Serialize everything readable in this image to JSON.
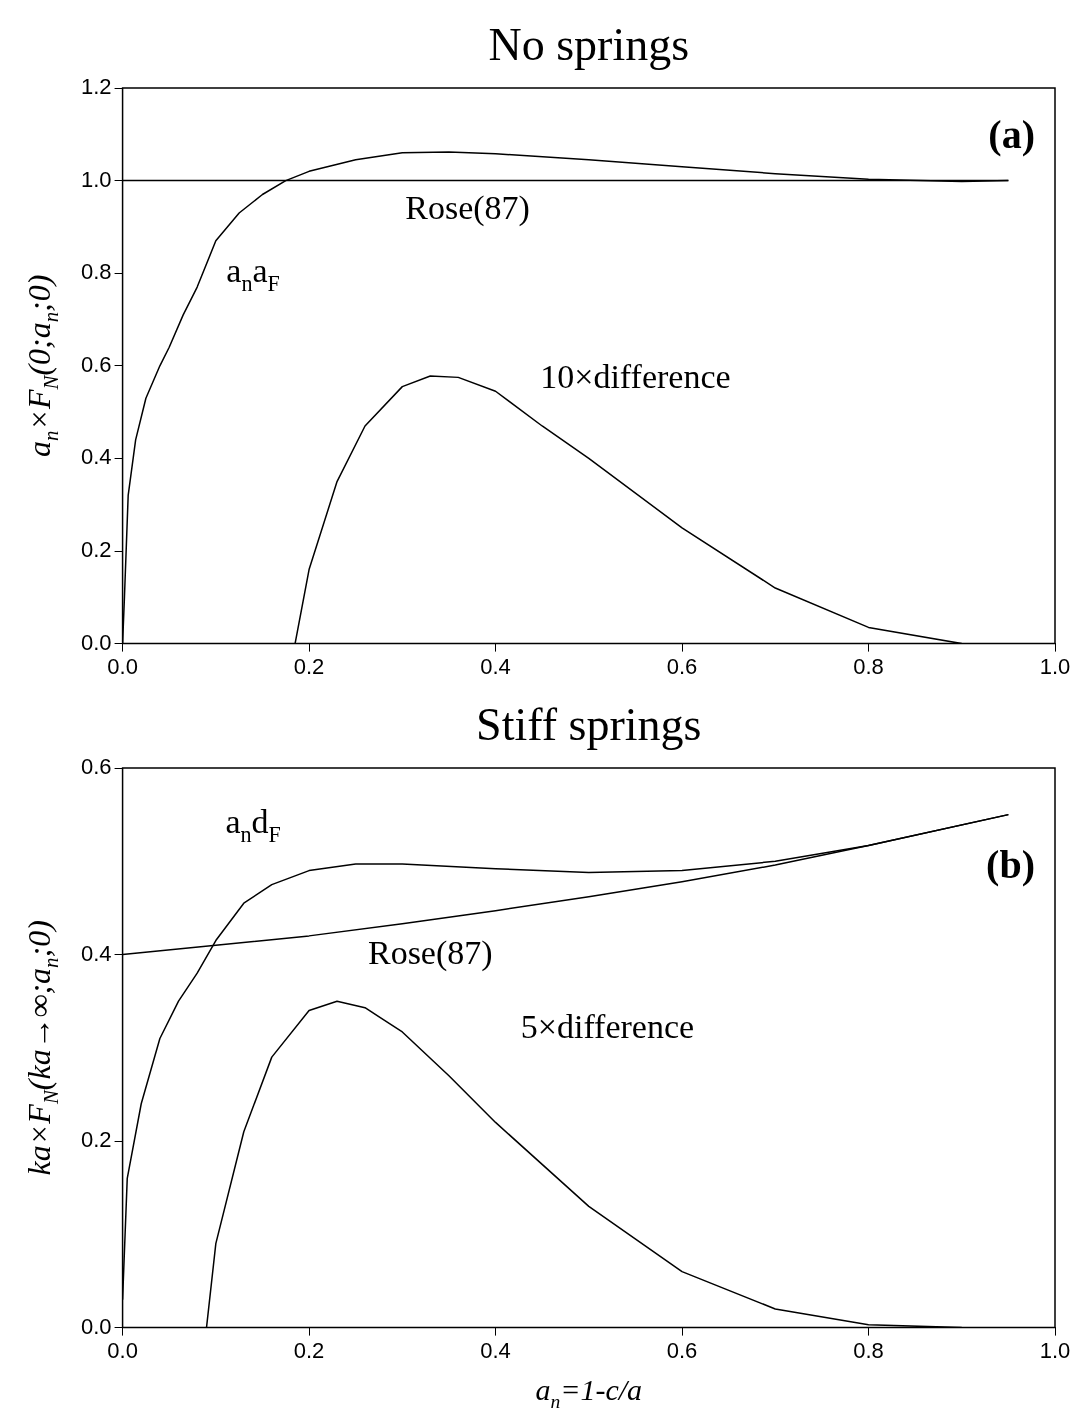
{
  "chart_data": [
    {
      "type": "line",
      "title": "No springs",
      "ylabel": "a$_{n}$×F$_{N}$(0;a$_{n}$;0)",
      "xlim": [
        0,
        1
      ],
      "ylim": [
        0,
        1.2
      ],
      "xticks": [
        {
          "value": 0,
          "label": "0.0"
        },
        {
          "value": 0.2,
          "label": "0.2"
        },
        {
          "value": 0.4,
          "label": "0.4"
        },
        {
          "value": 0.6,
          "label": "0.6"
        },
        {
          "value": 0.8,
          "label": "0.8"
        },
        {
          "value": 1,
          "label": "1.0"
        }
      ],
      "yticks": [
        {
          "value": 0,
          "label": "0.0"
        },
        {
          "value": 0.2,
          "label": "0.2"
        },
        {
          "value": 0.4,
          "label": "0.4"
        },
        {
          "value": 0.6,
          "label": "0.6"
        },
        {
          "value": 0.8,
          "label": "0.8"
        },
        {
          "value": 1,
          "label": "1.0"
        },
        {
          "value": 1.2,
          "label": "1.2"
        }
      ],
      "grid": false,
      "legend": false,
      "marker": "none",
      "line_style": "solid",
      "series": [
        {
          "name": "Rose(87)",
          "color": "#000000",
          "x": [
            0,
            0.95
          ],
          "values": [
            1,
            1
          ]
        },
        {
          "name": "a$_{n}$a$_{F}$",
          "color": "#000000",
          "x": [
            0,
            0.002,
            0.006,
            0.014,
            0.025,
            0.04,
            0.05,
            0.065,
            0.08,
            0.1,
            0.125,
            0.15,
            0.175,
            0.2,
            0.25,
            0.3,
            0.35,
            0.4,
            0.5,
            0.6,
            0.7,
            0.8,
            0.9,
            0.95
          ],
          "values": [
            0,
            0.1,
            0.32,
            0.44,
            0.53,
            0.6,
            0.64,
            0.71,
            0.77,
            0.87,
            0.93,
            0.97,
            1,
            1.02,
            1.045,
            1.06,
            1.062,
            1.058,
            1.045,
            1.03,
            1.015,
            1.003,
            0.998,
            1
          ]
        },
        {
          "name": "10×difference",
          "color": "#000000",
          "x": [
            0.185,
            0.2,
            0.23,
            0.26,
            0.3,
            0.33,
            0.36,
            0.4,
            0.45,
            0.5,
            0.6,
            0.7,
            0.8,
            0.9
          ],
          "values": [
            0,
            0.16,
            0.35,
            0.47,
            0.555,
            0.578,
            0.575,
            0.545,
            0.47,
            0.4,
            0.25,
            0.12,
            0.035,
            0
          ]
        }
      ],
      "annotations": [
        "(a)"
      ]
    },
    {
      "type": "line",
      "title": "Stiff springs",
      "xlabel": "a$_{n}$=1-c/a",
      "ylabel": "ka×F$_{N}$(ka→∞;a$_{n}$;0)",
      "xlim": [
        0,
        1
      ],
      "ylim": [
        0,
        0.6
      ],
      "xticks": [
        {
          "value": 0,
          "label": "0.0"
        },
        {
          "value": 0.2,
          "label": "0.2"
        },
        {
          "value": 0.4,
          "label": "0.4"
        },
        {
          "value": 0.6,
          "label": "0.6"
        },
        {
          "value": 0.8,
          "label": "0.8"
        },
        {
          "value": 1,
          "label": "1.0"
        }
      ],
      "yticks": [
        {
          "value": 0,
          "label": "0.0"
        },
        {
          "value": 0.2,
          "label": "0.2"
        },
        {
          "value": 0.4,
          "label": "0.4"
        },
        {
          "value": 0.6,
          "label": "0.6"
        }
      ],
      "grid": false,
      "legend": false,
      "marker": "none",
      "line_style": "solid",
      "series": [
        {
          "name": "Rose(87)",
          "color": "#000000",
          "x": [
            0,
            0.1,
            0.2,
            0.3,
            0.4,
            0.5,
            0.6,
            0.7,
            0.8,
            0.95
          ],
          "values": [
            0.4,
            0.41,
            0.42,
            0.433,
            0.447,
            0.462,
            0.478,
            0.496,
            0.517,
            0.55
          ]
        },
        {
          "name": "a$_{n}$d$_{F}$",
          "color": "#000000",
          "x": [
            0,
            0.005,
            0.02,
            0.04,
            0.06,
            0.08,
            0.1,
            0.13,
            0.16,
            0.2,
            0.25,
            0.3,
            0.4,
            0.5,
            0.6,
            0.7,
            0.8,
            0.95
          ],
          "values": [
            0.03,
            0.16,
            0.24,
            0.31,
            0.35,
            0.38,
            0.415,
            0.455,
            0.475,
            0.49,
            0.497,
            0.497,
            0.492,
            0.488,
            0.49,
            0.5,
            0.517,
            0.55
          ]
        },
        {
          "name": "5×difference",
          "color": "#000000",
          "x": [
            0.09,
            0.1,
            0.13,
            0.16,
            0.2,
            0.23,
            0.26,
            0.3,
            0.35,
            0.4,
            0.5,
            0.6,
            0.7,
            0.8,
            0.9
          ],
          "values": [
            0,
            0.09,
            0.21,
            0.29,
            0.34,
            0.35,
            0.343,
            0.317,
            0.27,
            0.22,
            0.13,
            0.06,
            0.02,
            0.003,
            0
          ]
        }
      ],
      "annotations": [
        "(b)"
      ]
    }
  ]
}
